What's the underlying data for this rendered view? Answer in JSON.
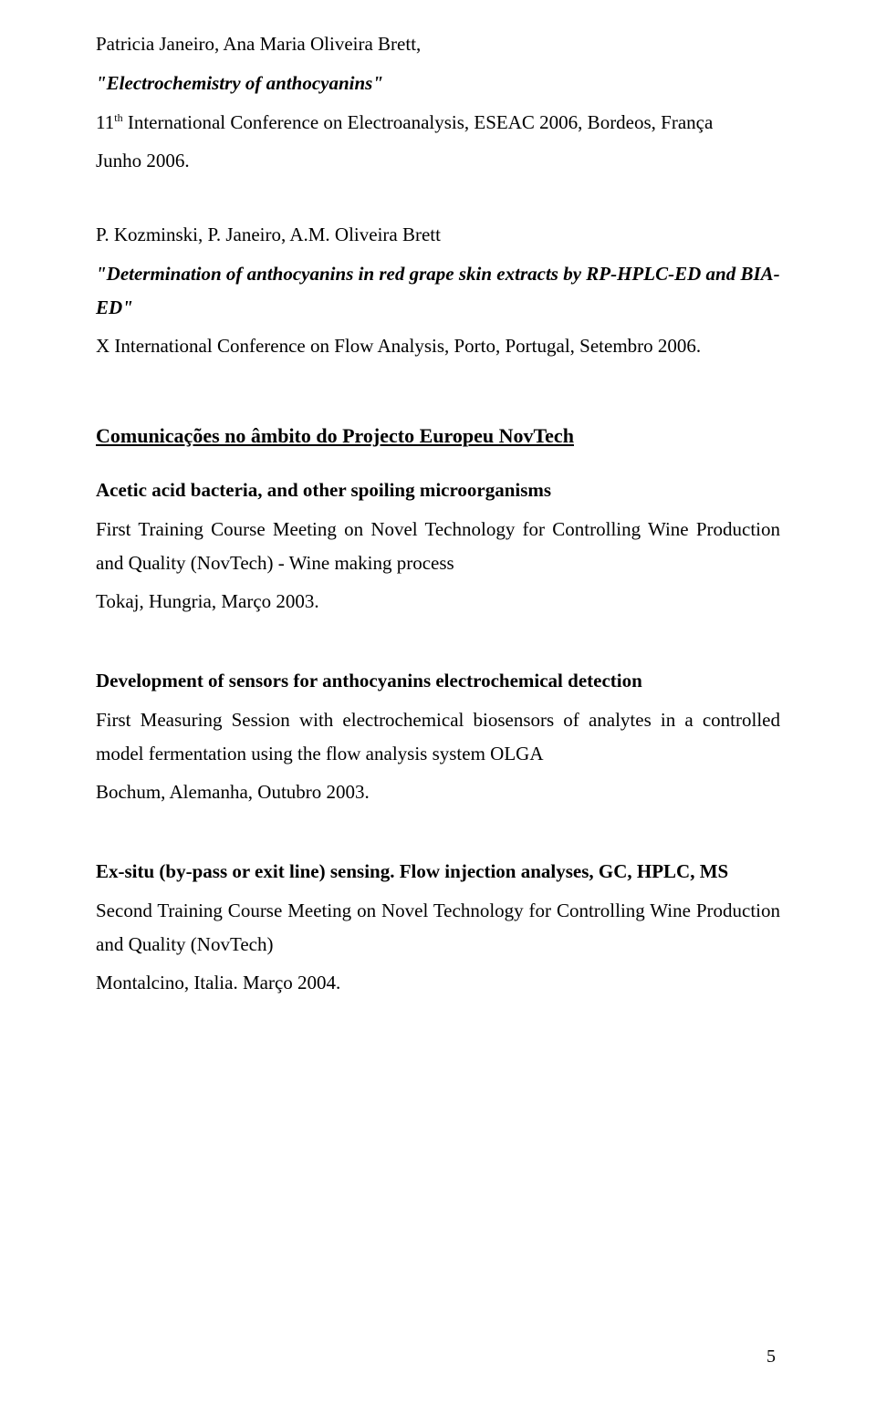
{
  "entry1": {
    "authors": "Patricia Janeiro, Ana Maria Oliveira Brett,",
    "title_quoted": "\"Electrochemistry of anthocyanins\"",
    "conf_pre": "11",
    "conf_sup": "th",
    "conf_rest": " International Conference on Electroanalysis, ESEAC 2006, Bordeos, França",
    "date": "Junho 2006."
  },
  "entry2": {
    "authors": "P. Kozminski, P. Janeiro, A.M. Oliveira Brett",
    "title_quoted": "\"Determination of anthocyanins in red grape skin extracts by RP-HPLC-ED and BIA-ED\"",
    "conf": "X International Conference on Flow Analysis, Porto, Portugal, Setembro 2006."
  },
  "section_heading": "Comunicações no âmbito do Projecto Europeu NovTech",
  "entry3": {
    "title": "Acetic acid bacteria, and other spoiling microorganisms",
    "line1": "First Training Course Meeting on Novel Technology for Controlling Wine Production and Quality (NovTech) - Wine making process",
    "line2": "Tokaj, Hungria, Março 2003."
  },
  "entry4": {
    "title": "Development of sensors for anthocyanins electrochemical detection",
    "line1": "First Measuring Session with electrochemical biosensors of analytes in a controlled model fermentation using the flow analysis system OLGA",
    "line2": "Bochum, Alemanha, Outubro 2003."
  },
  "entry5": {
    "title": "Ex-situ (by-pass or exit line) sensing. Flow injection analyses, GC, HPLC, MS",
    "line1": "Second Training Course Meeting on Novel Technology for Controlling Wine Production and Quality (NovTech)",
    "line2": "Montalcino, Italia. Março 2004."
  },
  "page_number": "5"
}
